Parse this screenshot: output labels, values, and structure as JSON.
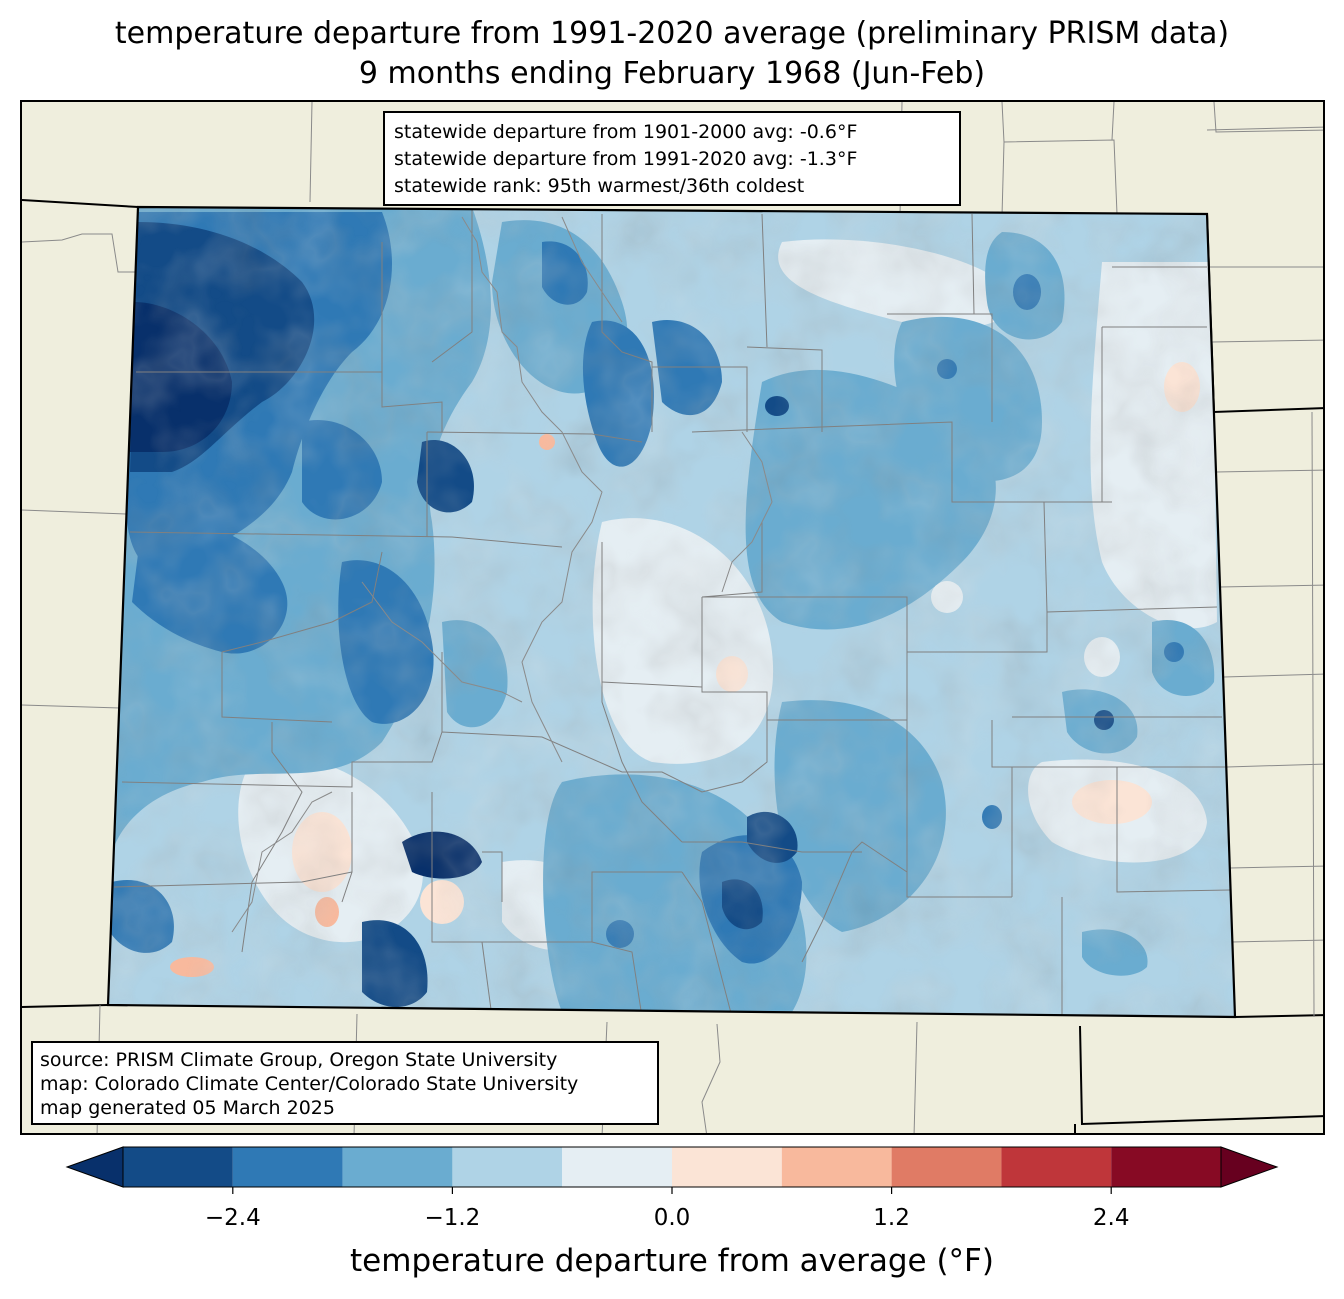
{
  "title": {
    "line1": "temperature departure from 1991-2020 average (preliminary PRISM data)",
    "line2": "9 months ending February 1968 (Jun-Feb)"
  },
  "stats_box": {
    "line1": "statewide departure from 1901-2000 avg: -0.6°F",
    "line2": "statewide departure from 1991-2020 avg: -1.3°F",
    "line3": "statewide rank: 95th warmest/36th coldest"
  },
  "source_box": {
    "line1": "source: PRISM Climate Group, Oregon State University",
    "line2": "map: Colorado Climate Center/Colorado State University",
    "line3": "map generated 05 March 2025"
  },
  "colorbar": {
    "label": "temperature departure from average (°F)",
    "ticks": [
      "−2.4",
      "−1.2",
      "0.0",
      "1.2",
      "2.4"
    ],
    "levels": [
      -3.0,
      -2.4,
      -1.8,
      -1.2,
      -0.6,
      0.0,
      0.6,
      1.2,
      1.8,
      2.4,
      3.0
    ],
    "under_color": "#08306b",
    "over_color": "#67001f",
    "colors": [
      "#134b87",
      "#2f79b5",
      "#6aacd0",
      "#afd3e6",
      "#e5eef3",
      "#fbe4d6",
      "#f8b99d",
      "#e07b65",
      "#bf363a",
      "#870a24"
    ]
  },
  "map_colors": {
    "land_background": "#efeedd",
    "state_border": "#000000",
    "county_border": "#808080"
  }
}
